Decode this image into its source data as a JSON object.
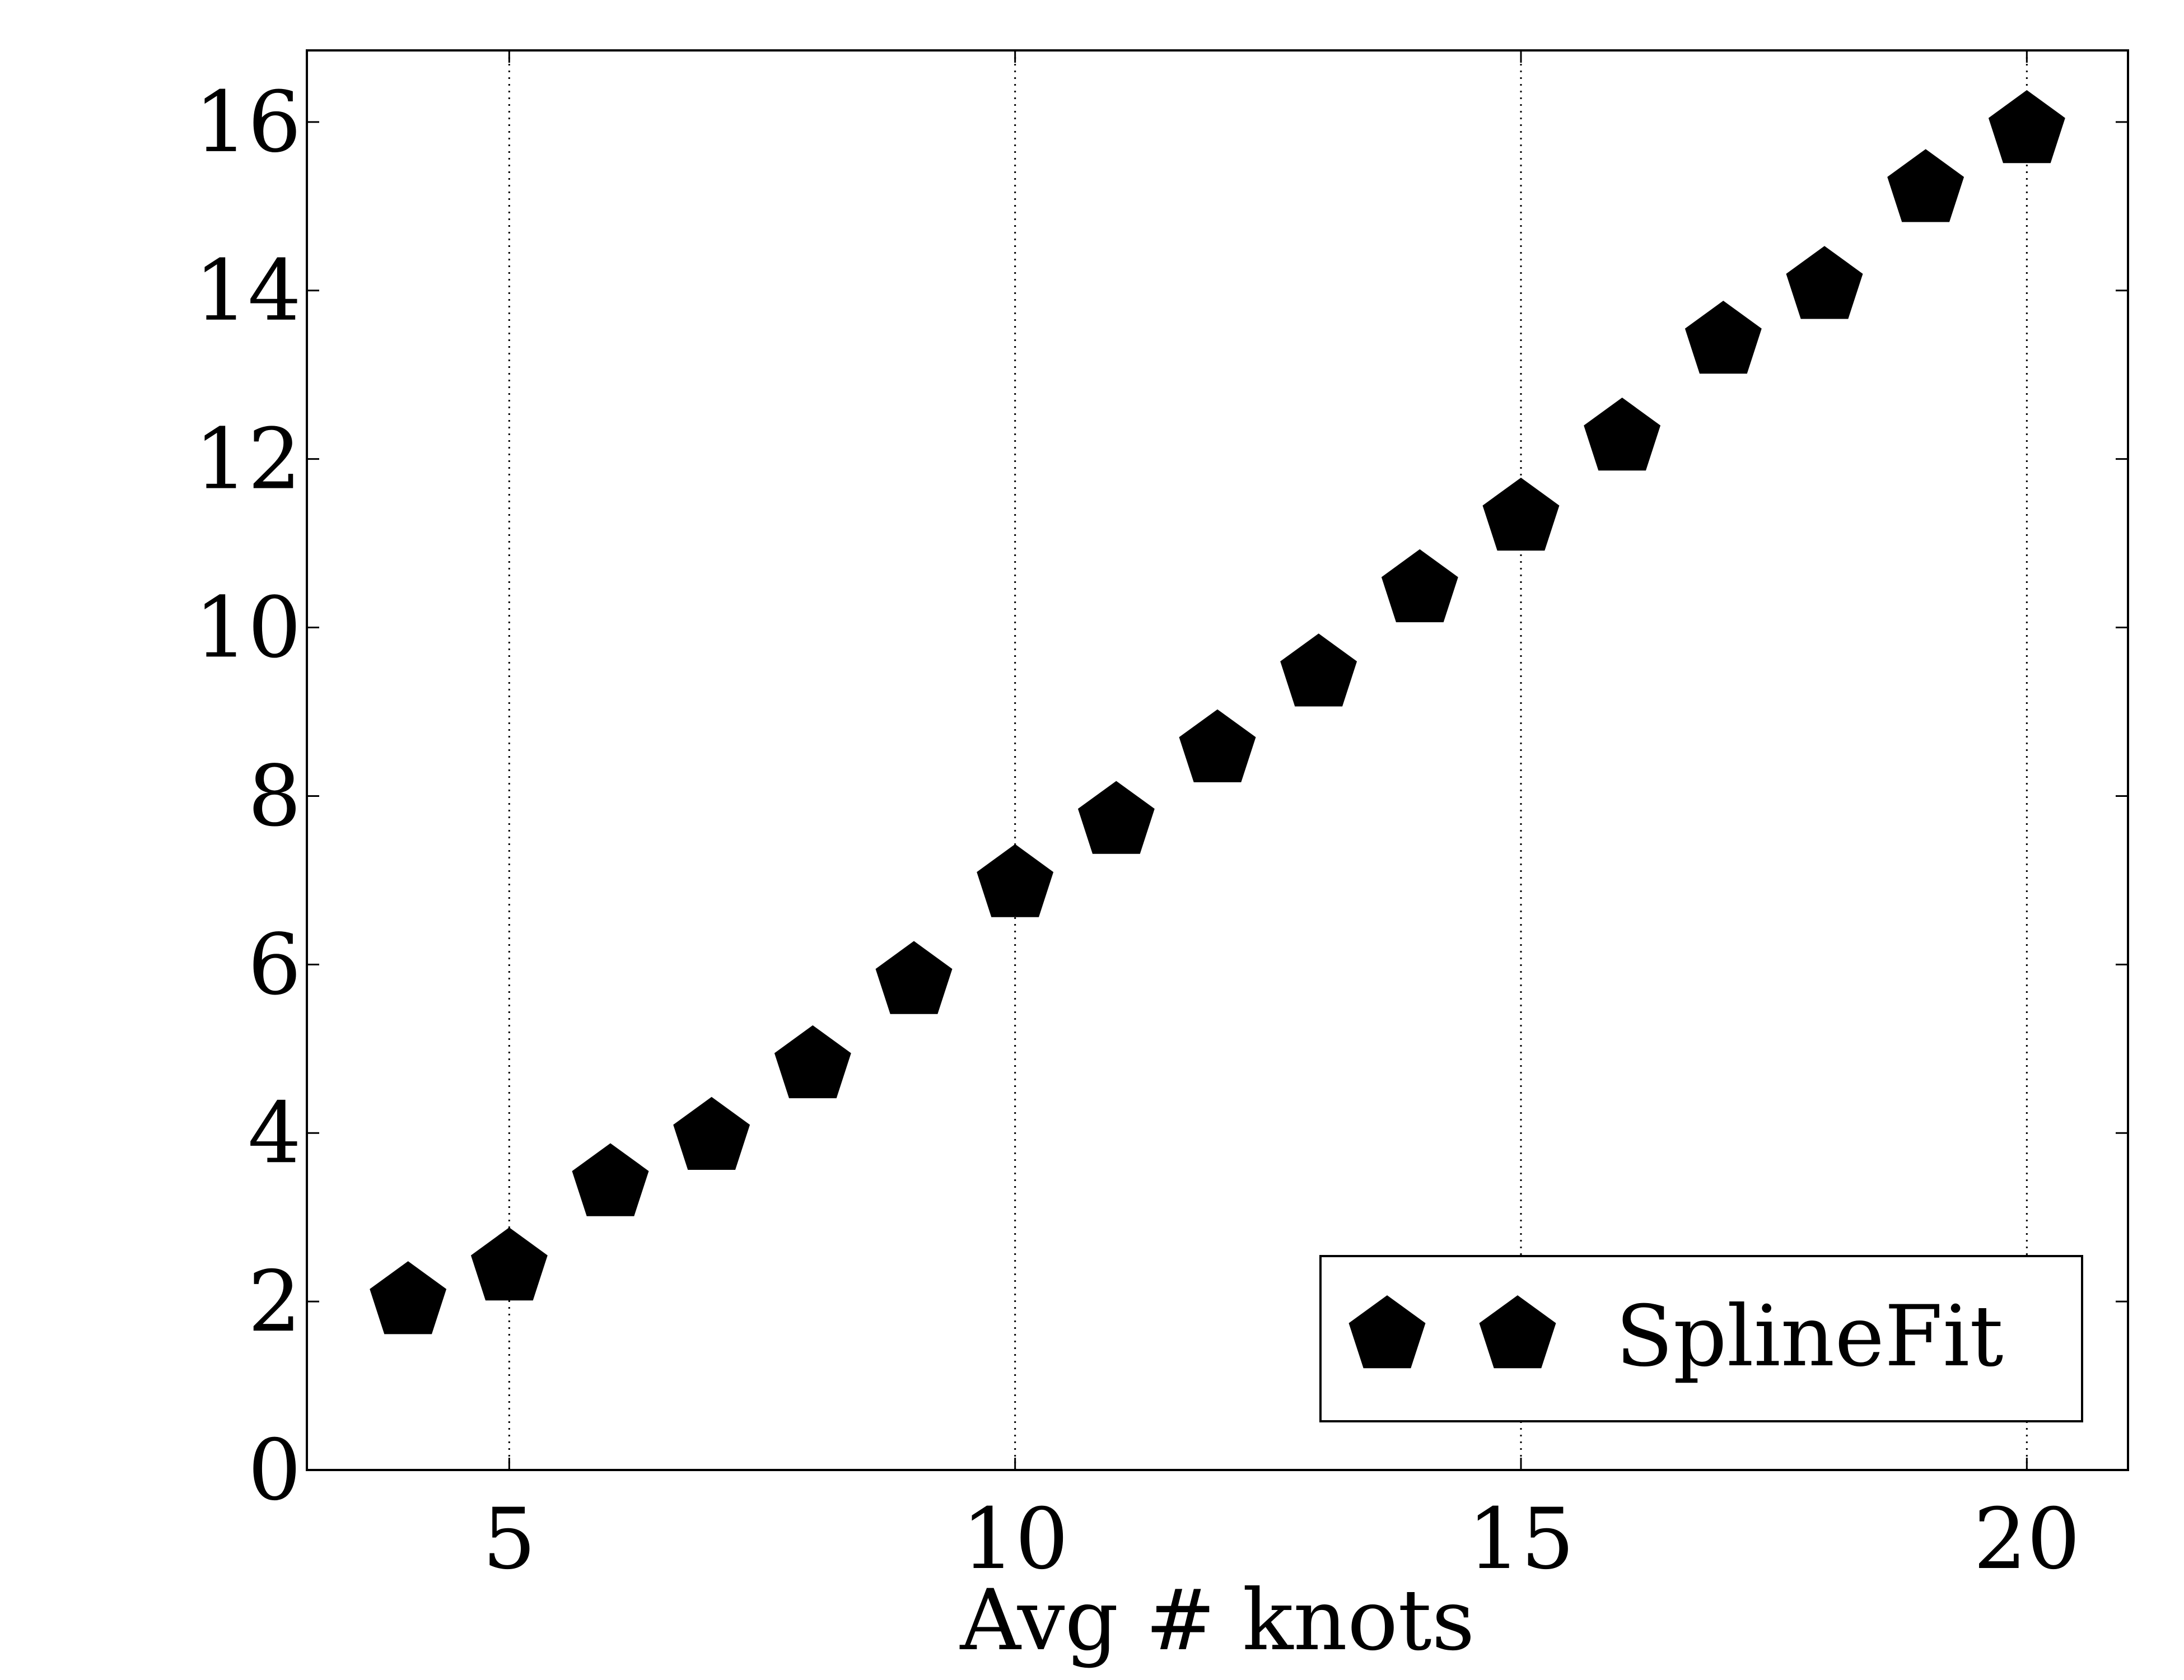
{
  "chart_data": {
    "type": "scatter",
    "title": "",
    "xlabel": "Avg # knots",
    "ylabel": "",
    "xlim": [
      3,
      21
    ],
    "ylim": [
      0,
      16.85
    ],
    "xticks": [
      5,
      10,
      15,
      20
    ],
    "yticks": [
      0,
      2,
      4,
      6,
      8,
      10,
      12,
      14,
      16
    ],
    "grid": "vertical-dotted",
    "legend_position": "lower right",
    "series": [
      {
        "name": "SplineFit",
        "marker": "pentagon",
        "color": "#000000",
        "x": [
          4,
          5,
          6,
          7,
          8,
          9,
          10,
          11,
          12,
          13,
          14,
          15,
          16,
          17,
          18,
          19,
          20
        ],
        "y": [
          2.0,
          2.4,
          3.4,
          3.95,
          4.8,
          5.8,
          6.95,
          7.7,
          8.55,
          9.45,
          10.45,
          11.3,
          12.25,
          13.4,
          14.05,
          15.2,
          15.9
        ]
      }
    ]
  }
}
